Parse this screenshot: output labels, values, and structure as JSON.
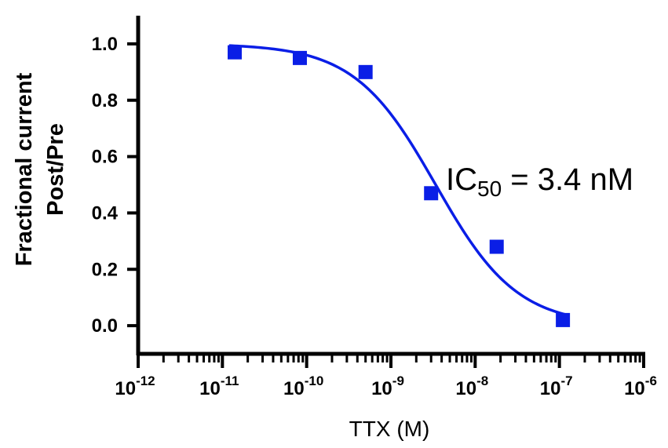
{
  "chart_data": {
    "type": "scatter",
    "xlabel": "TTX (M)",
    "ylabel_lines": [
      "Fractional current",
      "Post/Pre"
    ],
    "x_scale": "log",
    "xlim": [
      1e-12,
      1e-06
    ],
    "ylim": [
      -0.1,
      1.1
    ],
    "x_ticks": [
      {
        "value": 1e-12,
        "base": "10",
        "exp": "-12"
      },
      {
        "value": 1e-11,
        "base": "10",
        "exp": "-11"
      },
      {
        "value": 1e-10,
        "base": "10",
        "exp": "-10"
      },
      {
        "value": 1e-09,
        "base": "10",
        "exp": "-9"
      },
      {
        "value": 1e-08,
        "base": "10",
        "exp": "-8"
      },
      {
        "value": 1e-07,
        "base": "10",
        "exp": "-7"
      },
      {
        "value": 1e-06,
        "base": "10",
        "exp": "-6"
      }
    ],
    "y_ticks": [
      {
        "value": 0.0,
        "label": "0.0"
      },
      {
        "value": 0.2,
        "label": "0.2"
      },
      {
        "value": 0.4,
        "label": "0.4"
      },
      {
        "value": 0.6,
        "label": "0.6"
      },
      {
        "value": 0.8,
        "label": "0.8"
      },
      {
        "value": 1.0,
        "label": "1.0"
      }
    ],
    "series": [
      {
        "marker": "square",
        "color": "#0a1ee6",
        "x": [
          1.4e-11,
          8.3e-11,
          5e-10,
          3e-09,
          1.8e-08,
          1.1e-07
        ],
        "y": [
          0.97,
          0.95,
          0.9,
          0.47,
          0.28,
          0.02
        ]
      }
    ],
    "fit": {
      "type": "sigmoid",
      "color": "#0a1ee6",
      "top": 1.0,
      "bottom": 0.0,
      "ic50": 3.4e-09,
      "hill": 0.9,
      "x_range": [
        1.2e-11,
        1.2e-07
      ]
    },
    "annotation": {
      "prefix": "IC",
      "sub": "50",
      "suffix": " = 3.4 nM"
    },
    "grid": false,
    "legend": "none"
  }
}
